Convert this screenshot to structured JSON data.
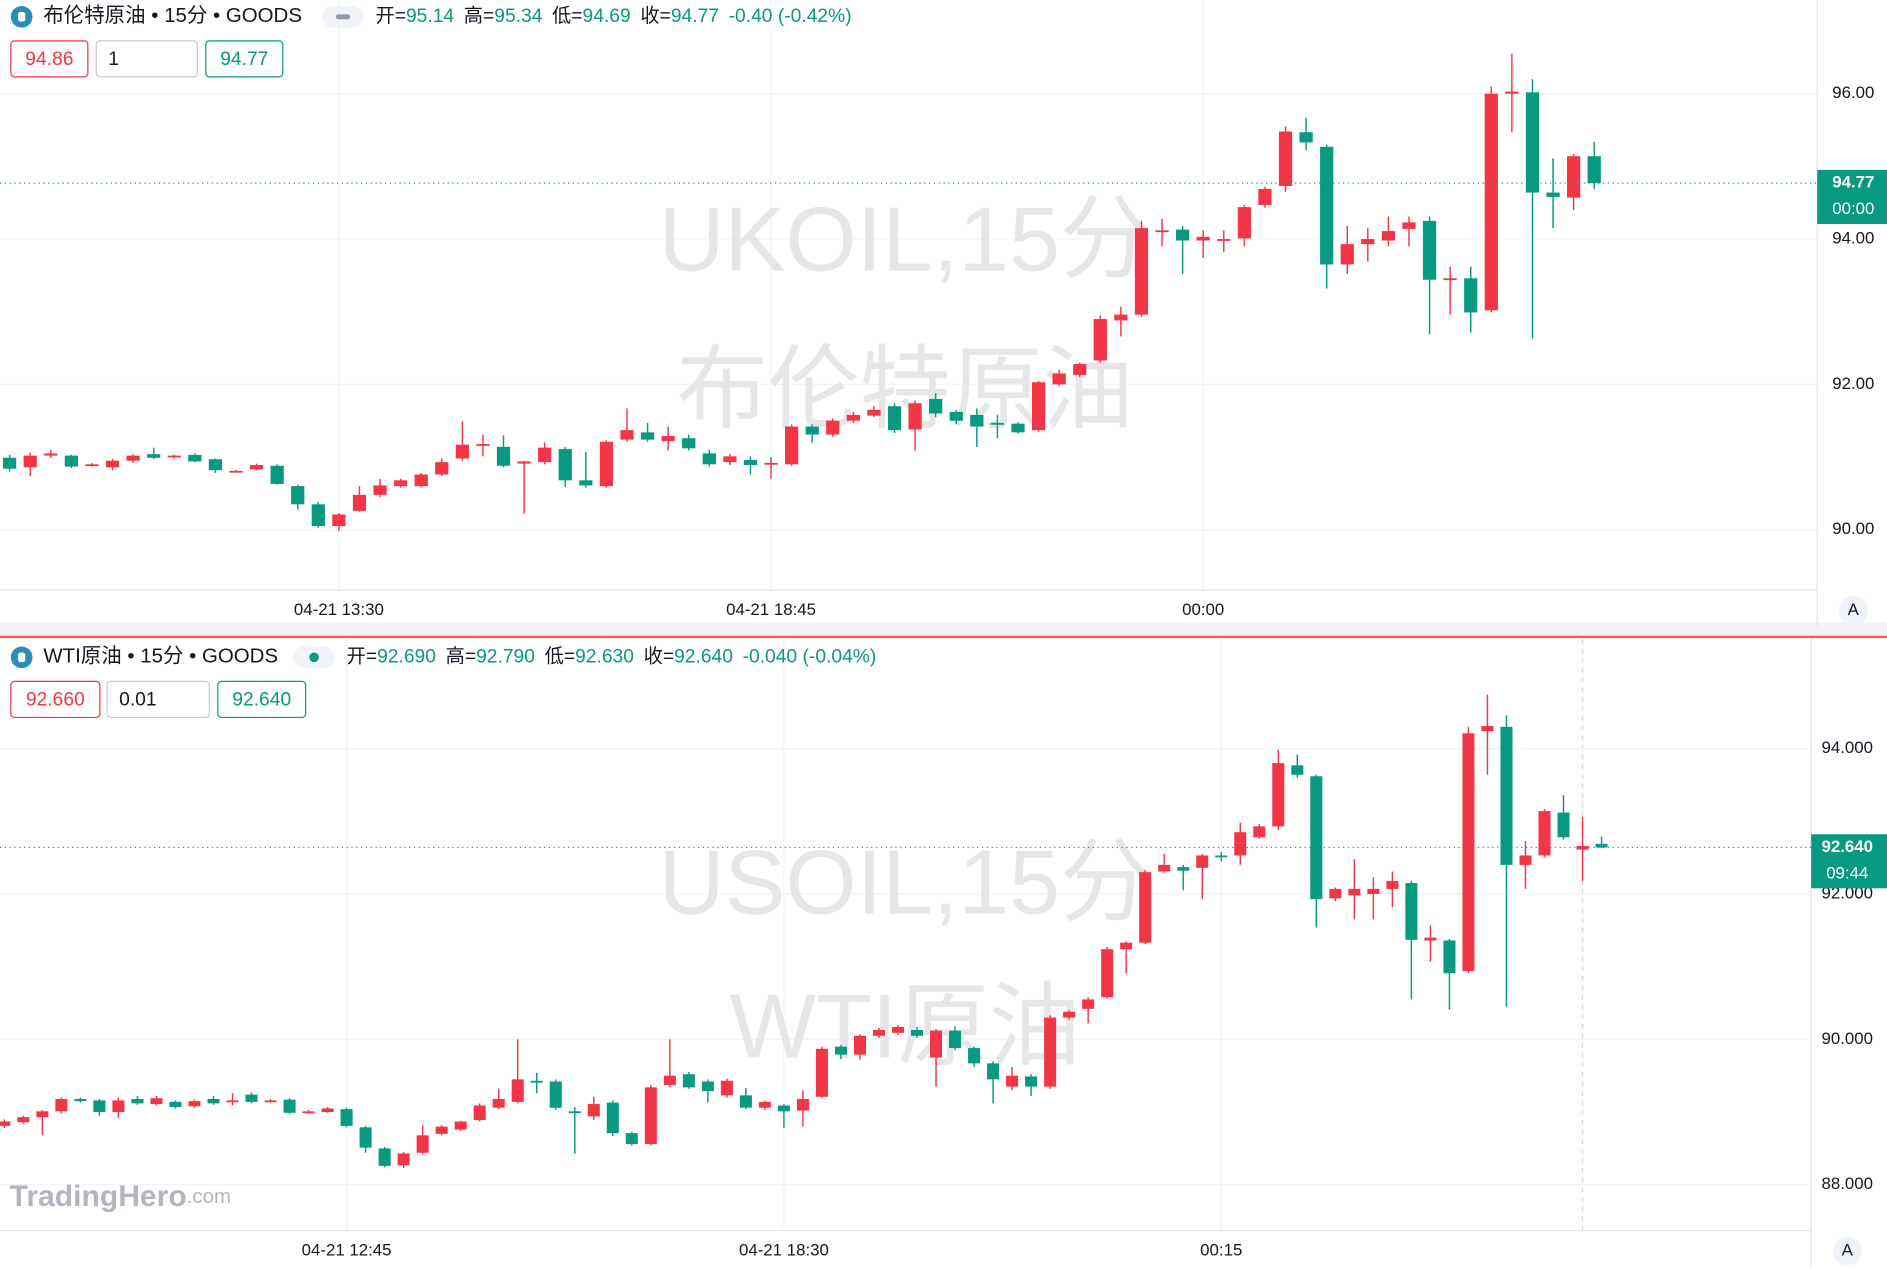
{
  "logo": {
    "name": "TradingHero",
    "suffix": ".com"
  },
  "chart_data": [
    {
      "type": "candlestick",
      "title": "布伦特原油 • 15分 • GOODS",
      "status": [
        {
          "label": "开=",
          "value": "95.14"
        },
        {
          "label": "高=",
          "value": "95.34"
        },
        {
          "label": "低=",
          "value": "94.69"
        },
        {
          "label": "收=",
          "value": "94.77"
        }
      ],
      "change": "-0.40 (-0.42%)",
      "bid": "94.86",
      "quantity": "1",
      "ask": "94.77",
      "watermark": [
        "UKOIL,15分",
        "布伦特原油"
      ],
      "last_price_label": "94.77",
      "countdown": "00:00",
      "auto_scale_label": "A",
      "up_color": "#f23645",
      "down_color": "#089981",
      "grid": true,
      "ylim": [
        89.17,
        97.29
      ],
      "yticks": [
        {
          "value": 90,
          "label": "90.00"
        },
        {
          "value": 92,
          "label": "92.00"
        },
        {
          "value": 94,
          "label": "94.00"
        },
        {
          "value": 96,
          "label": "96.00"
        }
      ],
      "categories": [
        null,
        null,
        null,
        null,
        null,
        null,
        null,
        null,
        null,
        null,
        null,
        null,
        null,
        null,
        null,
        null,
        "04-21 13:30",
        null,
        null,
        null,
        null,
        null,
        null,
        null,
        null,
        null,
        null,
        null,
        null,
        null,
        null,
        null,
        null,
        null,
        null,
        null,
        null,
        "04-21 18:45",
        null,
        null,
        null,
        null,
        null,
        null,
        null,
        null,
        null,
        null,
        null,
        null,
        null,
        null,
        null,
        null,
        null,
        null,
        null,
        null,
        "00:00",
        null,
        null,
        null,
        null,
        null,
        null,
        null,
        null,
        null,
        null,
        null,
        null,
        null,
        null,
        null,
        null,
        null,
        null,
        null
      ],
      "open": [
        90.99,
        90.86,
        91.02,
        91.02,
        90.89,
        90.86,
        90.95,
        91.04,
        91.0,
        91.03,
        90.97,
        90.8,
        90.83,
        90.88,
        90.6,
        90.35,
        90.05,
        90.26,
        90.48,
        90.6,
        90.6,
        90.76,
        90.98,
        91.16,
        91.14,
        90.91,
        90.93,
        91.11,
        90.68,
        90.6,
        91.24,
        91.34,
        91.22,
        91.26,
        91.05,
        90.93,
        90.96,
        90.9,
        90.9,
        91.42,
        91.31,
        91.5,
        91.57,
        91.7,
        91.38,
        91.8,
        91.62,
        91.58,
        91.47,
        91.46,
        91.37,
        92.0,
        92.13,
        92.33,
        92.88,
        92.96,
        94.1,
        94.13,
        93.98,
        93.98,
        94.01,
        94.47,
        94.73,
        95.47,
        95.27,
        93.65,
        93.93,
        93.98,
        94.14,
        94.25,
        93.45,
        93.46,
        93.02,
        96.0,
        96.02,
        94.64,
        94.57,
        95.14
      ],
      "high": [
        91.03,
        91.06,
        91.1,
        91.03,
        90.92,
        90.98,
        91.04,
        91.13,
        91.03,
        91.05,
        90.98,
        90.82,
        90.91,
        90.9,
        90.62,
        90.38,
        90.23,
        90.6,
        90.7,
        90.7,
        90.78,
        90.98,
        91.49,
        91.31,
        91.3,
        90.95,
        91.2,
        91.14,
        91.07,
        91.23,
        91.67,
        91.47,
        91.42,
        91.31,
        91.1,
        91.04,
        91.01,
        91.0,
        91.45,
        91.45,
        91.53,
        91.62,
        91.7,
        91.74,
        91.78,
        91.88,
        91.65,
        91.67,
        91.58,
        91.48,
        92.05,
        92.2,
        92.3,
        92.95,
        93.07,
        94.25,
        94.28,
        94.18,
        94.12,
        94.12,
        94.47,
        94.72,
        95.55,
        95.67,
        95.3,
        94.18,
        94.15,
        94.31,
        94.31,
        94.31,
        93.62,
        93.62,
        96.1,
        96.55,
        96.2,
        95.11,
        95.17,
        95.34
      ],
      "low": [
        90.8,
        90.74,
        90.99,
        90.85,
        90.87,
        90.82,
        90.92,
        90.97,
        90.98,
        90.93,
        90.78,
        90.79,
        90.82,
        90.62,
        90.28,
        90.03,
        89.98,
        90.25,
        90.45,
        90.58,
        90.58,
        90.74,
        90.95,
        91.01,
        90.86,
        90.22,
        90.9,
        90.59,
        90.58,
        90.58,
        91.21,
        91.21,
        91.09,
        91.09,
        90.87,
        90.89,
        90.76,
        90.7,
        90.88,
        91.2,
        91.28,
        91.47,
        91.55,
        91.33,
        91.09,
        91.55,
        91.45,
        91.14,
        91.26,
        91.32,
        91.35,
        91.98,
        92.1,
        92.3,
        92.66,
        92.93,
        93.9,
        93.52,
        93.74,
        93.82,
        93.9,
        94.43,
        94.65,
        95.22,
        93.32,
        93.52,
        93.69,
        93.9,
        93.9,
        92.69,
        92.96,
        92.71,
        92.99,
        95.47,
        92.63,
        94.15,
        94.4,
        94.69
      ],
      "close": [
        90.84,
        91.02,
        91.05,
        90.87,
        90.9,
        90.95,
        91.02,
        90.99,
        91.02,
        90.94,
        90.82,
        90.81,
        90.89,
        90.63,
        90.35,
        90.05,
        90.21,
        90.48,
        90.61,
        90.68,
        90.76,
        90.93,
        91.17,
        91.18,
        90.88,
        90.94,
        91.13,
        90.68,
        90.61,
        91.21,
        91.37,
        91.24,
        91.29,
        91.12,
        90.9,
        91.01,
        90.89,
        90.92,
        91.42,
        91.31,
        91.5,
        91.58,
        91.65,
        91.37,
        91.74,
        91.6,
        91.5,
        91.42,
        91.46,
        91.34,
        92.03,
        92.15,
        92.28,
        92.9,
        92.96,
        94.15,
        94.12,
        93.98,
        94.03,
        94.0,
        94.44,
        94.69,
        95.48,
        95.33,
        93.65,
        93.93,
        94.0,
        94.11,
        94.23,
        93.44,
        93.46,
        92.99,
        96.0,
        96.03,
        94.64,
        94.58,
        95.14,
        94.77
      ]
    },
    {
      "type": "candlestick",
      "title": "WTI原油 • 15分 • GOODS",
      "status": [
        {
          "label": "开=",
          "value": "92.690"
        },
        {
          "label": "高=",
          "value": "92.790"
        },
        {
          "label": "低=",
          "value": "92.630"
        },
        {
          "label": "收=",
          "value": "92.640"
        }
      ],
      "change": "-0.040 (-0.04%)",
      "bid": "92.660",
      "quantity": "0.01",
      "ask": "92.640",
      "watermark": [
        "USOIL,15分",
        "WTI原油"
      ],
      "last_price_label": "92.640",
      "countdown": "09:44",
      "auto_scale_label": "A",
      "up_color": "#f23645",
      "down_color": "#089981",
      "grid": true,
      "ylim": [
        87.37,
        95.52
      ],
      "yticks": [
        {
          "value": 88,
          "label": "88.000"
        },
        {
          "value": 90,
          "label": "90.000"
        },
        {
          "value": 92,
          "label": "92.000"
        },
        {
          "value": 94,
          "label": "94.000"
        }
      ],
      "categories": [
        null,
        null,
        null,
        null,
        null,
        null,
        null,
        null,
        null,
        null,
        null,
        null,
        null,
        null,
        null,
        null,
        null,
        null,
        "04-21 12:45",
        null,
        null,
        null,
        null,
        null,
        null,
        null,
        null,
        null,
        null,
        null,
        null,
        null,
        null,
        null,
        null,
        null,
        null,
        null,
        null,
        null,
        null,
        "04-21 18:30",
        null,
        null,
        null,
        null,
        null,
        null,
        null,
        null,
        null,
        null,
        null,
        null,
        null,
        null,
        null,
        null,
        null,
        null,
        null,
        null,
        null,
        null,
        "00:15",
        null,
        null,
        null,
        null,
        null,
        null,
        null,
        null,
        null,
        null,
        null,
        null,
        null,
        null,
        null,
        null,
        null,
        null,
        null,
        null
      ],
      "open": [
        88.81,
        88.86,
        88.93,
        89.01,
        89.18,
        89.16,
        89.0,
        89.18,
        89.11,
        89.14,
        89.08,
        89.18,
        89.15,
        89.24,
        89.15,
        89.17,
        89.0,
        89.0,
        89.04,
        88.79,
        88.5,
        88.27,
        88.44,
        88.7,
        88.76,
        88.89,
        89.06,
        89.14,
        89.43,
        89.42,
        89.01,
        88.94,
        89.13,
        88.71,
        88.56,
        89.37,
        89.52,
        89.42,
        89.23,
        89.23,
        89.06,
        89.09,
        89.02,
        89.21,
        89.9,
        89.79,
        90.05,
        90.09,
        90.13,
        89.75,
        90.12,
        89.88,
        89.67,
        89.35,
        89.49,
        89.35,
        90.3,
        90.42,
        90.58,
        91.24,
        91.33,
        92.31,
        92.37,
        92.36,
        92.53,
        92.53,
        92.78,
        92.93,
        93.77,
        93.62,
        91.94,
        91.98,
        92.0,
        92.07,
        92.15,
        91.36,
        91.36,
        90.94,
        94.24,
        94.3,
        92.4,
        92.53,
        93.12,
        92.61,
        92.69
      ],
      "high": [
        88.9,
        88.95,
        89.03,
        89.2,
        89.2,
        89.18,
        89.2,
        89.22,
        89.22,
        89.16,
        89.17,
        89.22,
        89.26,
        89.27,
        89.18,
        89.19,
        89.03,
        89.07,
        89.06,
        88.81,
        88.52,
        88.45,
        88.82,
        88.82,
        88.88,
        89.12,
        89.32,
        90.0,
        89.54,
        89.45,
        89.07,
        89.21,
        89.16,
        88.73,
        89.37,
        90.0,
        89.55,
        89.45,
        89.46,
        89.33,
        89.16,
        89.11,
        89.3,
        89.9,
        89.92,
        90.07,
        90.16,
        90.2,
        90.17,
        90.14,
        90.18,
        89.9,
        89.7,
        89.62,
        89.52,
        90.33,
        90.4,
        90.58,
        91.27,
        91.35,
        92.33,
        92.55,
        92.4,
        92.55,
        92.58,
        92.98,
        92.96,
        93.98,
        93.92,
        93.64,
        92.09,
        92.48,
        92.23,
        92.31,
        92.18,
        91.57,
        91.38,
        94.3,
        94.74,
        94.46,
        92.73,
        93.17,
        93.36,
        93.06,
        92.79
      ],
      "low": [
        88.78,
        88.84,
        88.68,
        88.98,
        89.13,
        88.95,
        88.92,
        89.1,
        89.09,
        89.05,
        89.06,
        89.1,
        89.09,
        89.12,
        89.13,
        88.97,
        88.98,
        88.99,
        88.79,
        88.44,
        88.24,
        88.23,
        88.42,
        88.68,
        88.74,
        88.87,
        89.04,
        89.12,
        89.26,
        89.03,
        88.43,
        88.89,
        88.67,
        88.54,
        88.54,
        89.34,
        89.32,
        89.13,
        89.2,
        89.04,
        89.03,
        88.78,
        88.8,
        89.19,
        89.73,
        89.72,
        90.02,
        90.06,
        90.02,
        89.35,
        89.85,
        89.62,
        89.12,
        89.3,
        89.22,
        89.32,
        90.27,
        90.22,
        90.56,
        90.91,
        91.31,
        92.29,
        92.05,
        91.93,
        92.45,
        92.4,
        92.76,
        92.88,
        93.6,
        91.54,
        91.9,
        91.65,
        91.65,
        91.82,
        90.55,
        91.07,
        90.41,
        90.91,
        93.64,
        90.45,
        92.07,
        92.5,
        92.75,
        92.18,
        92.63
      ],
      "close": [
        88.87,
        88.93,
        89.01,
        89.18,
        89.15,
        89.0,
        89.16,
        89.12,
        89.19,
        89.07,
        89.15,
        89.12,
        89.16,
        89.14,
        89.16,
        88.99,
        89.01,
        89.05,
        88.81,
        88.51,
        88.26,
        88.43,
        88.68,
        88.8,
        88.87,
        89.09,
        89.18,
        89.45,
        89.42,
        89.06,
        89.0,
        89.11,
        88.71,
        88.56,
        89.34,
        89.5,
        89.34,
        89.29,
        89.43,
        89.06,
        89.14,
        89.01,
        89.18,
        89.87,
        89.79,
        90.05,
        90.13,
        90.17,
        90.05,
        90.12,
        89.88,
        89.67,
        89.45,
        89.5,
        89.35,
        90.3,
        90.38,
        90.55,
        91.24,
        91.33,
        92.3,
        92.4,
        92.32,
        92.53,
        92.52,
        92.85,
        92.93,
        93.8,
        93.64,
        91.93,
        92.07,
        92.07,
        92.07,
        92.18,
        91.37,
        91.4,
        90.91,
        94.21,
        94.31,
        92.4,
        92.53,
        93.14,
        92.78,
        92.66,
        92.64
      ]
    }
  ]
}
